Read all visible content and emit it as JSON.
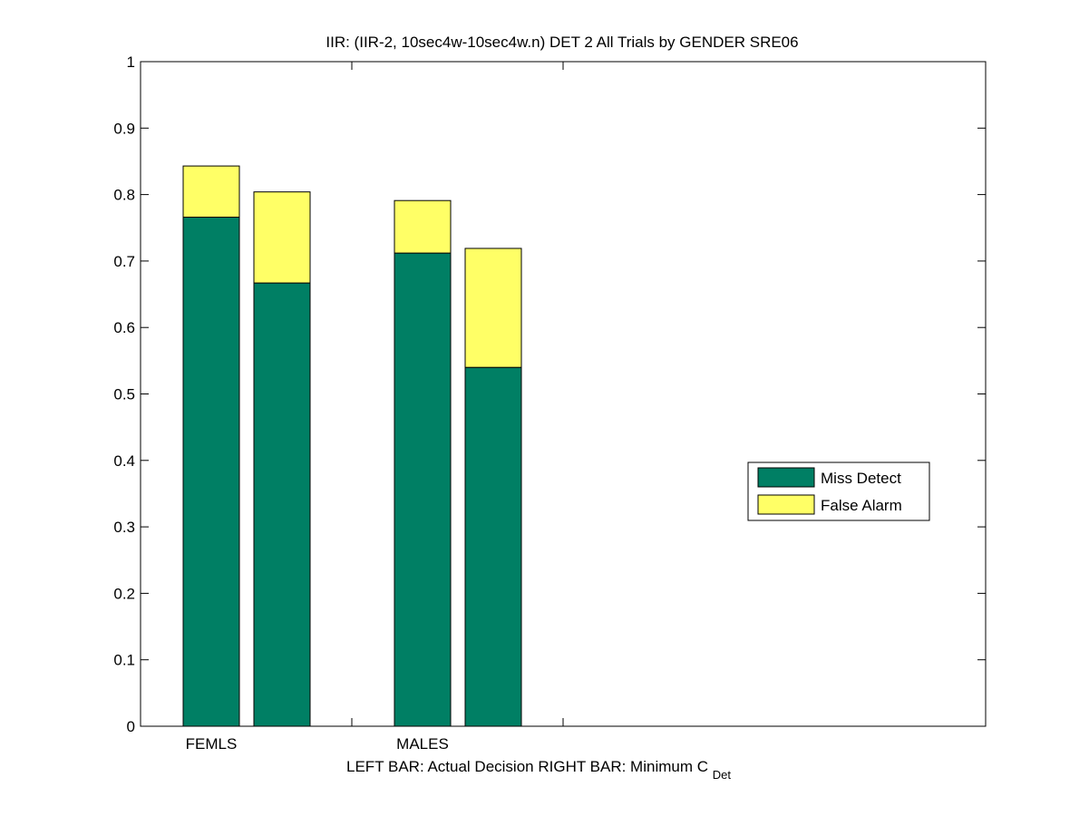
{
  "chart_data": {
    "type": "bar",
    "stacked": true,
    "title": "IIR: (IIR-2, 10sec4w-10sec4w.n) DET 2 All Trials by GENDER SRE06",
    "xlabel": {
      "left_part": "LEFT BAR: Actual Decision",
      "right_part": "RIGHT BAR: Minimum C",
      "subscript": "Det"
    },
    "ylabel": "",
    "ylim": [
      0,
      1
    ],
    "yticks": [
      "0",
      "0.1",
      "0.2",
      "0.3",
      "0.4",
      "0.5",
      "0.6",
      "0.7",
      "0.8",
      "0.9",
      "1"
    ],
    "categories": [
      "FEMLS",
      "MALES"
    ],
    "bars_per_category": [
      "Actual Decision",
      "Minimum C_Det"
    ],
    "series": [
      {
        "name": "Miss Detect",
        "color": "#007f64",
        "values": [
          [
            0.766,
            0.667
          ],
          [
            0.712,
            0.54
          ]
        ]
      },
      {
        "name": "False Alarm",
        "color": "#ffff66",
        "values": [
          [
            0.077,
            0.137
          ],
          [
            0.079,
            0.179
          ]
        ]
      }
    ],
    "legend_position": "right-middle",
    "grid": false
  }
}
